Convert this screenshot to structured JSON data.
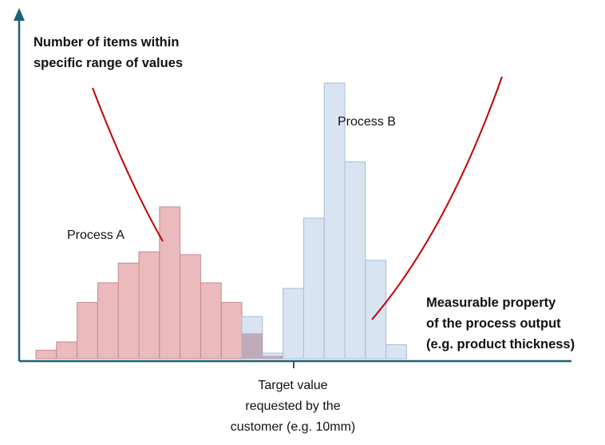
{
  "chart_data": {
    "type": "bar",
    "y_axis_label_lines": [
      "Number of items within",
      "specific range of values"
    ],
    "x_axis_label_lines": [
      "Measurable property",
      "of the process output",
      "(e.g. product thickness)"
    ],
    "target_label_lines": [
      "Target value",
      "requested by the",
      "customer (e.g. 10mm)"
    ],
    "grid": false,
    "series": [
      {
        "name": "Process A",
        "color": "#e8b4b6",
        "edge": "#c98a8e",
        "bins": [
          1,
          2,
          3,
          4,
          5,
          6,
          7,
          8,
          9,
          10,
          11,
          12
        ],
        "values": [
          3,
          6,
          20,
          27,
          34,
          38,
          54,
          37,
          27,
          20,
          9,
          1
        ]
      },
      {
        "name": "Process B",
        "color": "#d6e2f1",
        "edge": "#a9bcd6",
        "bins": [
          11,
          12,
          13,
          14,
          15,
          16,
          17,
          18
        ],
        "values": [
          15,
          2,
          25,
          50,
          98,
          70,
          35,
          5
        ]
      }
    ],
    "target_bin": 13,
    "curve_color": "#c00000",
    "axis_color": "#1f5f7a"
  }
}
